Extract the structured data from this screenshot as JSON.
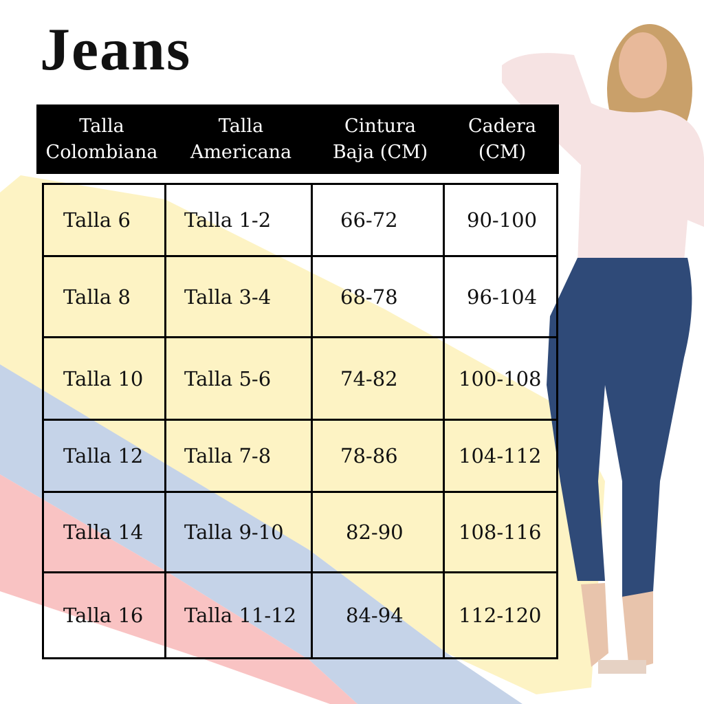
{
  "title": "Jeans",
  "colors": {
    "yellow": "#fdf3c4",
    "blue": "#c5d3e8",
    "pink": "#f9c3c3",
    "header_bg": "#000000"
  },
  "table": {
    "headers": [
      "Talla\nColombiana",
      "Talla\nAmericana",
      "Cintura\nBaja (CM)",
      "Cadera\n(CM)"
    ],
    "rows": [
      [
        "Talla 6",
        "Talla 1-2",
        "66-72",
        "90-100"
      ],
      [
        "Talla 8",
        "Talla 3-4",
        "68-78",
        "96-104"
      ],
      [
        "Talla 10",
        "Talla 5-6",
        "74-82",
        "100-108"
      ],
      [
        "Talla 12",
        "Talla 7-8",
        "78-86",
        "104-112"
      ],
      [
        "Talla 14",
        "Talla 9-10",
        "82-90",
        "108-116"
      ],
      [
        "Talla 16",
        "Talla 11-12",
        "84-94",
        "112-120"
      ]
    ]
  }
}
